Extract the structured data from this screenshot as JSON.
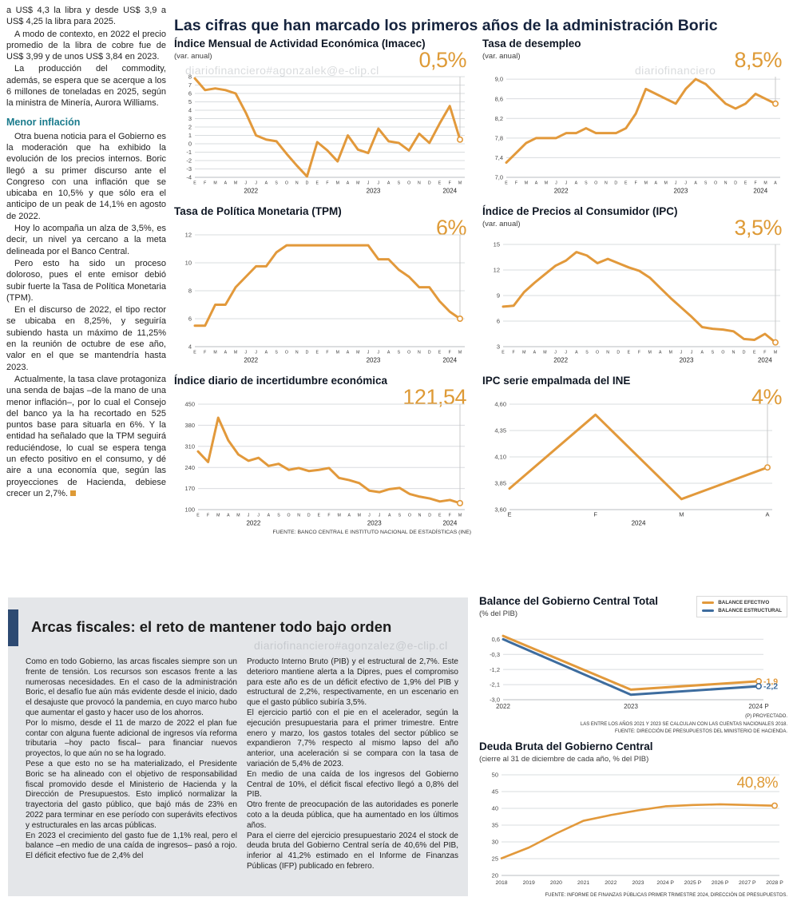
{
  "page": {
    "main_title": "Las cifras que han marcado los primeros años de la administración Boric",
    "watermark_top_left": "diariofinanciero#agonzalek@e-clip.cl",
    "watermark_top_right": "diariofinanciero",
    "watermark_bottom": "diariofinanciero#agonzalez@e-clip.cl"
  },
  "article": {
    "p1": "a US$ 4,3 la libra y desde US$ 3,9 a US$ 4,25 la libra para 2025.",
    "p2": "A modo de contexto, en 2022 el precio promedio de la libra de cobre fue de US$ 3,99 y de unos US$ 3,84 en 2023.",
    "p3": "La producción del commodity, además, se espera que se acerque a los 6 millones de toneladas en 2025, según la ministra de Minería, Aurora Williams.",
    "subheading": "Menor inflación",
    "p4": "Otra buena noticia para el Gobierno es la moderación que ha exhibido la evolución de los precios internos. Boric llegó a su primer discurso ante el Congreso con una inflación que se ubicaba en 10,5% y que sólo era el anticipo de un peak de 14,1% en agosto de 2022.",
    "p5": "Hoy lo acompaña un alza de 3,5%, es decir, un nivel ya cercano a la meta delineada por el Banco Central.",
    "p6": "Pero esto ha sido un proceso doloroso, pues el ente emisor debió subir fuerte la Tasa de Política Monetaria (TPM).",
    "p7": "En el discurso de 2022, el tipo rector se ubicaba en 8,25%, y seguiría subiendo hasta un máximo de 11,25% en la reunión de octubre de ese año, valor en el que se mantendría hasta 2023.",
    "p8": "Actualmente, la tasa clave protagoniza una senda de bajas –de la mano de una menor inflación–, por lo cual el Consejo del banco ya la ha recortado en 525 puntos base para situarla en 6%. Y la entidad ha señalado que la TPM seguirá reduciéndose, lo cual se espera tenga un efecto positivo en el consumo, y dé aire a una economía que, según las proyecciones de Hacienda, debiese crecer un 2,7%."
  },
  "fiscal": {
    "title": "Arcas fiscales: el reto de mantener todo bajo orden",
    "col1": [
      "Como en todo Gobierno, las arcas fiscales siempre son un frente de tensión. Los recursos son escasos frente a las numerosas necesidades. En el caso de la administración Boric, el desafío fue aún más evidente desde el inicio, dado el desajuste que provocó la pandemia, en cuyo marco hubo que aumentar el gasto y hacer uso de los ahorros.",
      "Por lo mismo, desde el 11 de marzo de 2022 el plan fue contar con alguna fuente adicional de ingresos vía reforma tributaria –hoy pacto fiscal– para financiar nuevos proyectos, lo que aún no se ha logrado.",
      "Pese a que esto no se ha materializado, el Presidente Boric se ha alineado con el objetivo de responsabilidad fiscal promovido desde el Ministerio de Hacienda y la Dirección de Presupuestos. Esto implicó normalizar la trayectoria del gasto público, que bajó más de 23% en 2022 para terminar en ese período con superávits efectivos y estructurales en las arcas públicas.",
      "En 2023 el crecimiento del gasto fue de 1,1% real, pero el balance –en medio de una caída de ingresos– pasó a rojo. El déficit efectivo fue de 2,4% del"
    ],
    "col2": [
      "Producto Interno Bruto (PIB) y el estructural de 2,7%. Este deterioro mantiene alerta a la Dipres, pues el compromiso para este año es de un déficit efectivo de 1,9% del PIB y estructural de 2,2%, respectivamente, en un escenario en que el gasto público subiría 3,5%.",
      "El ejercicio partió con el pie en el acelerador, según la ejecución presupuestaria para el primer trimestre. Entre enero y marzo, los gastos totales del sector público se expandieron 7,7% respecto al mismo lapso del año anterior, una aceleración si se compara con la tasa de variación de 5,4% de 2023.",
      "En medio de una caída de los ingresos del Gobierno Central de 10%, el déficit fiscal efectivo llegó a 0,8% del PIB.",
      "Otro frente de preocupación de las autoridades es ponerle coto a la deuda pública, que ha aumentado en los últimos años.",
      "Para el cierre del ejercicio presupuestario 2024 el stock de deuda bruta del Gobierno Central sería de 40,6% del PIB, inferior al 41,2% estimado en el Informe de Finanzas Públicas (IFP) publicado en febrero."
    ]
  },
  "chart_data": [
    {
      "id": "imacec",
      "type": "line",
      "title": "Índice Mensual de Actividad Económica (Imacec)",
      "subtitle": "(var. anual)",
      "big_value": "0,5%",
      "ymin": -4,
      "ymax": 8,
      "ml": 26,
      "yticks": [
        {
          "v": 8,
          "label": "8"
        },
        {
          "v": 7,
          "label": "7"
        },
        {
          "v": 6,
          "label": "6"
        },
        {
          "v": 5,
          "label": "5"
        },
        {
          "v": 4,
          "label": "4"
        },
        {
          "v": 3,
          "label": "3"
        },
        {
          "v": 2,
          "label": "2"
        },
        {
          "v": 1,
          "label": "1"
        },
        {
          "v": 0,
          "label": "0"
        },
        {
          "v": -1,
          "label": "-1"
        },
        {
          "v": -2,
          "label": "-2"
        },
        {
          "v": -3,
          "label": "-3"
        },
        {
          "v": -4,
          "label": "-4"
        }
      ],
      "x": [
        "E",
        "F",
        "M",
        "A",
        "M",
        "J",
        "J",
        "A",
        "S",
        "O",
        "N",
        "D",
        "E",
        "F",
        "M",
        "A",
        "M",
        "J",
        "J",
        "A",
        "S",
        "O",
        "N",
        "D",
        "E",
        "F",
        "M"
      ],
      "years": [
        {
          "label": "2022",
          "at": 5.5
        },
        {
          "label": "2023",
          "at": 17.5
        },
        {
          "label": "2024",
          "at": 25
        }
      ],
      "end_line": true,
      "series": [
        {
          "name": "Imacec",
          "color": "#e2993b",
          "values": [
            7.8,
            6.4,
            6.6,
            6.4,
            6.0,
            3.7,
            1.0,
            0.5,
            0.3,
            -1.2,
            -2.6,
            -3.9,
            0.2,
            -0.8,
            -2.1,
            1.0,
            -0.7,
            -1.1,
            1.8,
            0.3,
            0.1,
            -0.8,
            1.2,
            0.1,
            2.4,
            4.5,
            0.5
          ]
        }
      ]
    },
    {
      "id": "desempleo",
      "type": "line",
      "title": "Tasa de desempleo",
      "subtitle": "(var. anual)",
      "big_value": "8,5%",
      "ymin": 7.0,
      "ymax": 9.05,
      "ml": 30,
      "yticks": [
        {
          "v": 9.0,
          "label": "9,0"
        },
        {
          "v": 8.6,
          "label": "8,6"
        },
        {
          "v": 8.2,
          "label": "8,2"
        },
        {
          "v": 7.8,
          "label": "7,8"
        },
        {
          "v": 7.4,
          "label": "7,4"
        },
        {
          "v": 7.0,
          "label": "7,0"
        }
      ],
      "x": [
        "E",
        "F",
        "M",
        "A",
        "M",
        "J",
        "J",
        "A",
        "S",
        "O",
        "N",
        "D",
        "E",
        "F",
        "M",
        "A",
        "M",
        "J",
        "J",
        "A",
        "S",
        "O",
        "N",
        "D",
        "E",
        "F",
        "M",
        "A"
      ],
      "years": [
        {
          "label": "2022",
          "at": 5.5
        },
        {
          "label": "2023",
          "at": 17.5
        },
        {
          "label": "2024",
          "at": 25.5
        }
      ],
      "end_line": true,
      "series": [
        {
          "name": "Tasa de desempleo",
          "color": "#e2993b",
          "values": [
            7.3,
            7.5,
            7.7,
            7.8,
            7.8,
            7.8,
            7.9,
            7.9,
            8.0,
            7.9,
            7.9,
            7.9,
            8.0,
            8.3,
            8.8,
            8.7,
            8.6,
            8.5,
            8.8,
            9.0,
            8.9,
            8.7,
            8.5,
            8.4,
            8.5,
            8.7,
            8.6,
            8.5
          ]
        }
      ]
    },
    {
      "id": "tpm",
      "type": "line",
      "title": "Tasa de Política Monetaria (TPM)",
      "subtitle": "",
      "big_value": "6%",
      "ymin": 4,
      "ymax": 12,
      "ml": 26,
      "yticks": [
        {
          "v": 12,
          "label": "12"
        },
        {
          "v": 10,
          "label": "10"
        },
        {
          "v": 8,
          "label": "8"
        },
        {
          "v": 6,
          "label": "6"
        },
        {
          "v": 4,
          "label": "4"
        }
      ],
      "x": [
        "E",
        "F",
        "M",
        "A",
        "M",
        "J",
        "J",
        "A",
        "S",
        "O",
        "N",
        "D",
        "E",
        "F",
        "M",
        "A",
        "M",
        "J",
        "J",
        "A",
        "S",
        "O",
        "N",
        "D",
        "E",
        "F",
        "M"
      ],
      "years": [
        {
          "label": "2022",
          "at": 5.5
        },
        {
          "label": "2023",
          "at": 17.5
        },
        {
          "label": "2024",
          "at": 25
        }
      ],
      "end_line": true,
      "series": [
        {
          "name": "TPM",
          "color": "#e2993b",
          "values": [
            5.5,
            5.5,
            7.0,
            7.0,
            8.25,
            9.0,
            9.75,
            9.75,
            10.75,
            11.25,
            11.25,
            11.25,
            11.25,
            11.25,
            11.25,
            11.25,
            11.25,
            11.25,
            10.25,
            10.25,
            9.5,
            9.0,
            8.25,
            8.25,
            7.25,
            6.5,
            6.0
          ]
        }
      ]
    },
    {
      "id": "ipc",
      "type": "line",
      "title": "Índice de Precios al Consumidor (IPC)",
      "subtitle": "(var. anual)",
      "big_value": "3,5%",
      "ymin": 3,
      "ymax": 15,
      "ml": 26,
      "yticks": [
        {
          "v": 15,
          "label": "15"
        },
        {
          "v": 12,
          "label": "12"
        },
        {
          "v": 9,
          "label": "9"
        },
        {
          "v": 6,
          "label": "6"
        },
        {
          "v": 3,
          "label": "3"
        }
      ],
      "x": [
        "E",
        "F",
        "M",
        "A",
        "M",
        "J",
        "J",
        "A",
        "S",
        "O",
        "N",
        "D",
        "E",
        "F",
        "M",
        "A",
        "M",
        "J",
        "J",
        "A",
        "S",
        "O",
        "N",
        "D",
        "E",
        "F",
        "M"
      ],
      "years": [
        {
          "label": "2022",
          "at": 5.5
        },
        {
          "label": "2023",
          "at": 17.5
        },
        {
          "label": "2024",
          "at": 25
        }
      ],
      "end_line": true,
      "series": [
        {
          "name": "IPC",
          "color": "#e2993b",
          "values": [
            7.7,
            7.8,
            9.4,
            10.5,
            11.5,
            12.5,
            13.1,
            14.1,
            13.7,
            12.8,
            13.3,
            12.8,
            12.3,
            11.9,
            11.1,
            9.9,
            8.7,
            7.6,
            6.5,
            5.3,
            5.1,
            5.0,
            4.8,
            3.9,
            3.8,
            4.5,
            3.5
          ]
        }
      ]
    },
    {
      "id": "incertidumbre",
      "type": "line",
      "title": "Índice diario de incertidumbre económica",
      "subtitle": "",
      "big_value": "121,54",
      "ymin": 100,
      "ymax": 450,
      "ml": 30,
      "yticks": [
        {
          "v": 450,
          "label": "450"
        },
        {
          "v": 380,
          "label": "380"
        },
        {
          "v": 310,
          "label": "310"
        },
        {
          "v": 240,
          "label": "240"
        },
        {
          "v": 170,
          "label": "170"
        },
        {
          "v": 100,
          "label": "100"
        }
      ],
      "x": [
        "E",
        "F",
        "M",
        "A",
        "M",
        "J",
        "J",
        "A",
        "S",
        "O",
        "N",
        "D",
        "E",
        "F",
        "M",
        "A",
        "M",
        "J",
        "J",
        "A",
        "S",
        "O",
        "N",
        "D",
        "E",
        "F",
        "M"
      ],
      "years": [
        {
          "label": "2022",
          "at": 5.5
        },
        {
          "label": "2023",
          "at": 17.5
        },
        {
          "label": "2024",
          "at": 25
        }
      ],
      "end_line": true,
      "source": "FUENTE: BANCO CENTRAL E INSTITUTO NACIONAL DE ESTADÍSTICAS (INE)",
      "series": [
        {
          "name": "Incertidumbre económica",
          "color": "#e2993b",
          "values": [
            293,
            258,
            405,
            330,
            283,
            262,
            272,
            245,
            252,
            232,
            238,
            228,
            232,
            238,
            205,
            198,
            188,
            163,
            158,
            168,
            172,
            152,
            143,
            137,
            127,
            132,
            121.54
          ]
        }
      ]
    },
    {
      "id": "ipc-ine",
      "type": "line",
      "title": "IPC serie empalmada del INE",
      "subtitle": "",
      "big_value": "4%",
      "ymin": 3.6,
      "ymax": 4.6,
      "ml": 34,
      "mr": 24,
      "xfont": 7.5,
      "yticks": [
        {
          "v": 4.6,
          "label": "4,60"
        },
        {
          "v": 4.35,
          "label": "4,35"
        },
        {
          "v": 4.1,
          "label": "4,10"
        },
        {
          "v": 3.85,
          "label": "3,85"
        },
        {
          "v": 3.6,
          "label": "3,60"
        }
      ],
      "x": [
        "E",
        "F",
        "M",
        "A"
      ],
      "years": [
        {
          "label": "2024",
          "at": 1.5
        }
      ],
      "end_line": true,
      "series": [
        {
          "name": "IPC empalmado",
          "color": "#e2993b",
          "values": [
            3.8,
            4.5,
            3.7,
            4.0
          ]
        }
      ]
    },
    {
      "id": "balance",
      "type": "line",
      "title": "Balance del Gobierno Central Total",
      "subtitle": "(% del PIB)",
      "ymin": -3.0,
      "ymax": 0.9,
      "ml": 30,
      "mr": 36,
      "mb": 16,
      "xfont": 8,
      "yticks": [
        {
          "v": 0.6,
          "label": "0,6"
        },
        {
          "v": -0.3,
          "label": "-0,3"
        },
        {
          "v": -1.2,
          "label": "-1,2"
        },
        {
          "v": -2.1,
          "label": "-2,1"
        },
        {
          "v": -3.0,
          "label": "-3,0"
        }
      ],
      "x": [
        "2022",
        "2023",
        "2024 P"
      ],
      "series": [
        {
          "name": "BALANCE EFECTIVO",
          "color": "#e2993b",
          "values": [
            0.8,
            -2.4,
            -1.9
          ],
          "end_label": "-1,9"
        },
        {
          "name": "BALANCE ESTRUCTURAL",
          "color": "#3d6c9e",
          "values": [
            0.6,
            -2.7,
            -2.2
          ],
          "end_label": "-2,2"
        }
      ],
      "footnotes": [
        "(P) PROYECTADO.",
        "LAS ENTRE LOS AÑOS 2021 Y 2023 SE CALCULAN CON LAS CUENTAS NACIONALES 2018.",
        "FUENTE: DIRECCIÓN DE PRESUPUESTOS DEL MINISTERIO DE HACIENDA."
      ]
    },
    {
      "id": "deuda",
      "type": "line",
      "title": "Deuda Bruta del Gobierno Central",
      "subtitle": "(cierre al 31 de diciembre de cada año, % del PIB)",
      "big_value": "40,8%",
      "ymin": 20,
      "ymax": 50,
      "ml": 28,
      "mr": 16,
      "mb": 16,
      "xfont": 6.8,
      "yticks": [
        {
          "v": 50,
          "label": "50"
        },
        {
          "v": 45,
          "label": "45"
        },
        {
          "v": 40,
          "label": "40"
        },
        {
          "v": 35,
          "label": "35"
        },
        {
          "v": 30,
          "label": "30"
        },
        {
          "v": 25,
          "label": "25"
        },
        {
          "v": 20,
          "label": "20"
        }
      ],
      "x": [
        "2018",
        "2019",
        "2020",
        "2021",
        "2022",
        "2023",
        "2024 P",
        "2025 P",
        "2026 P",
        "2027 P",
        "2028 P"
      ],
      "series": [
        {
          "name": "Deuda bruta",
          "color": "#e2993b",
          "lw": 2.6,
          "values": [
            25.1,
            28.3,
            32.5,
            36.3,
            38.0,
            39.4,
            40.6,
            41.0,
            41.2,
            41.0,
            40.8
          ]
        }
      ],
      "footnote": "FUENTE: INFORME DE FINANZAS PÚBLICAS PRIMER TRIMESTRE 2024, DIRECCIÓN DE PRESUPUESTOS."
    }
  ]
}
